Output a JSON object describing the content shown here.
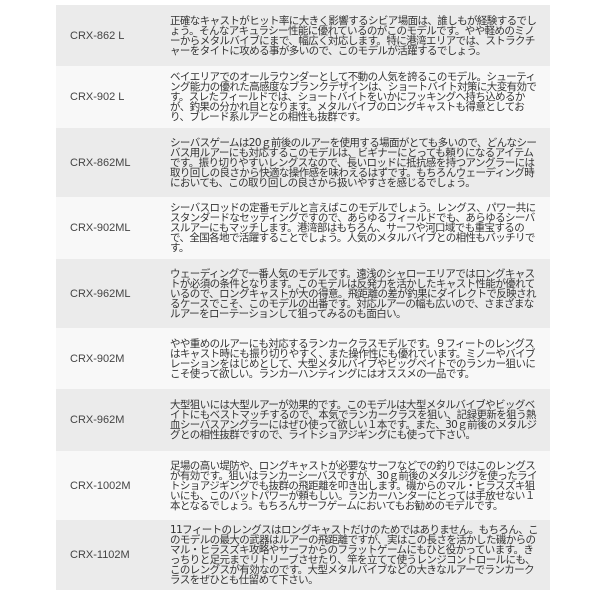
{
  "rows": [
    {
      "model": "CRX-862 L",
      "desc": "正確なキャストがヒット率に大きく影響するシビア場面は、誰しもが経験するでしょう。そんなアキュラシー性能に優れているのがこのモデルです。やや軽めのミノーからメタルバイブにまで、幅広く対応します。特に港湾エリアでは、ストラクチャーをタイトに攻める事が多いので、このモデルが活躍するでしょう。"
    },
    {
      "model": "CRX-902 L",
      "desc": "ベイエリアでのオールラウンダーとして不動の人気を誇るこのモデル。シューティング能力の優れた高感度なブランクデザインは、ショートバイト対策に大変有効です。スレたフィールドでは、ショートバイトをいかにフッキングへ持ち込めるかが、釣果の分かれ目となります。メタルバイブのロングキャストも得意としており、ブレード系ルアーとの相性も抜群です。"
    },
    {
      "model": "CRX-862ML",
      "desc": "シーバスゲームは20ｇ前後のルアーを使用する場面がとても多いので、どんなシーバス用ルアーにも対応するこのモデルは、ビギナーにとっても頼りになるアイテムです。振り切りやすいレングスなので、長いロッドに抵抗感を持つアングラーには取り回しの良さから快適な操作感を味わえるはずです。もちろんウェーディング時においても、この取り回しの良さから扱いやすさを感じるでしょう。"
    },
    {
      "model": "CRX-902ML",
      "desc": "シーバスロッドの定番モデルと言えばこのモデルでしょう。レングス、パワー共にスタンダードなセッティングですので、あらゆるフィールドでも、あらゆるシーバスルアーにもマッチします。港湾部はもちろん、サーフや河口域でも重宝するので、全国各地で活躍することでしょう。人気のメタルバイブとの相性もバッチリです。"
    },
    {
      "model": "CRX-962ML",
      "desc": "ウェーディングで一番人気のモデルです。遠浅のシャローエリアではロングキャストが必須の条件となります。このモデルは反発力を活かしたキャスト性能が優れているので、ロングキャストが大の得意。飛距離の差が釣果にダイレクトで反映されるケースでこそ、このモデルの出番です。対応ルアーの幅も広いので、さまざまなルアーをローテーションして狙ってみるのも面白い。"
    },
    {
      "model": "CRX-902M",
      "desc": "やや重めのルアーにも対応するランカークラスモデルです。９フィートのレングスはキャスト時にも振り切りやすく、また操作性にも優れています。ミノーやバイブレーションをはじめとして、大型メタルバイブやビッグベイトでのランカー狙いにこそ使って欲しい。ランカーハンティングにはオススメの一品です。"
    },
    {
      "model": "CRX-962M",
      "desc": "大型狙いには大型ルアーが効果的です。このモデルは大型メタルバイブやビッグベイトにもベストマッチするので、本気でランカークラスを狙い、記録更新を狙う熱血シーバスアングラーにはぜひ使って欲しい１本です。また、30ｇ前後のメタルジグとの相性抜群ですので、ライトショアジギングにも使って下さい。"
    },
    {
      "model": "CRX-1002M",
      "desc": "足場の高い堤防や、ロングキャストが必要なサーフなどでの釣りではこのレングスが有効です。狙いはランカーシーバスですが、30ｇ前後のメタルジグを使ったライトショアジギングでも抜群の飛距離を叩き出します。磯からのマル・ヒラスズキ狙いにも、このバットパワーが頼もしい。ランカーハンターにとっては手放せない１本となるでしょう。もちろんサーフゲームにおいてもお勧めのモデルです。"
    },
    {
      "model": "CRX-1102M",
      "desc": "11フィートのレングスはロングキャストだけのためではありません。もちろん、このモデルの最大の武器はルアーの飛距離ですが、実はこの長さを活かした磯からのマル・ヒラスズキ攻略やサーフからのフラットゲームにもひと役かっています。きっちりと足元までリトリーブさせたり、竿を立てて使うレンジコントロールにも、このレングスが有効なのです。大型メタルバイブなどの大きなルアーでランカークラスをぜひとも仕留めて下さい。"
    }
  ]
}
